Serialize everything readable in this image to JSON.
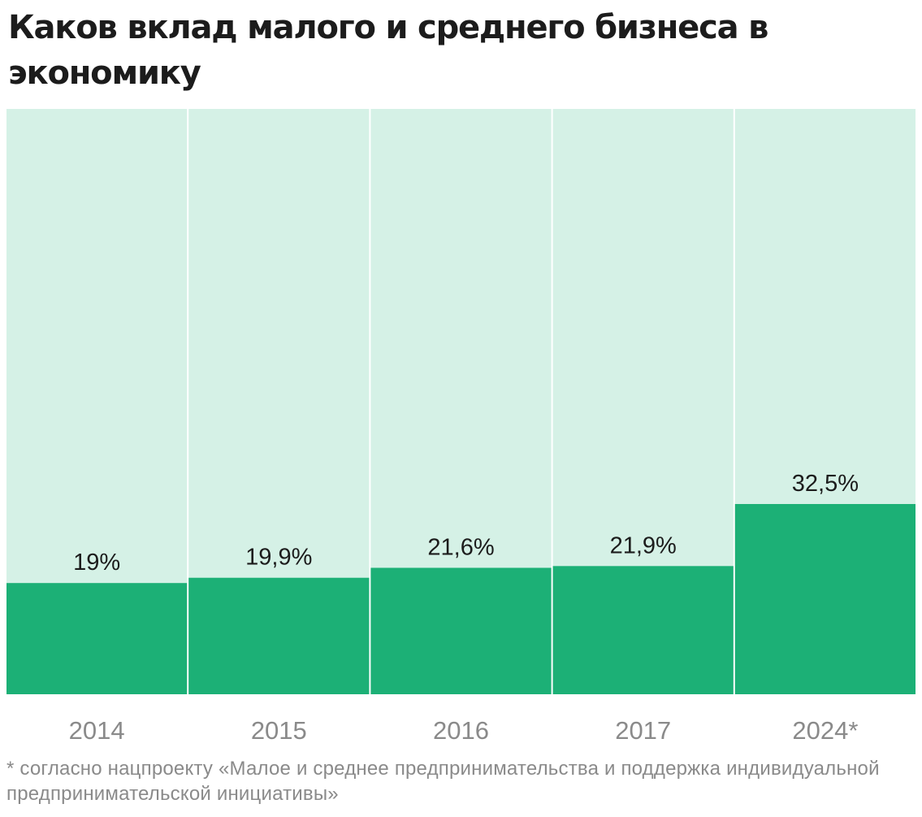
{
  "title": "Каков вклад малого и среднего бизнеса в экономику",
  "footnote": "* согласно нацпроекту  «Малое и среднее предпринимательства и поддержка индивидуальной предпринимательской инициативы»",
  "colors": {
    "background_column": "#d5f1e6",
    "bar": "#1cb076",
    "label_text": "#1c1c1c",
    "axis_text": "#8a8a8a"
  },
  "chart_data": {
    "type": "bar",
    "title": "Каков вклад малого и среднего бизнеса в экономику",
    "categories": [
      "2014",
      "2015",
      "2016",
      "2017",
      "2024*"
    ],
    "values": [
      19,
      19.9,
      21.6,
      21.9,
      32.5
    ],
    "value_labels": [
      "19%",
      "19,9%",
      "21,6%",
      "21,9%",
      "32,5%"
    ],
    "unit": "%",
    "xlabel": "",
    "ylabel": "",
    "ylim": [
      0,
      100
    ],
    "grid": false,
    "legend": "none"
  }
}
